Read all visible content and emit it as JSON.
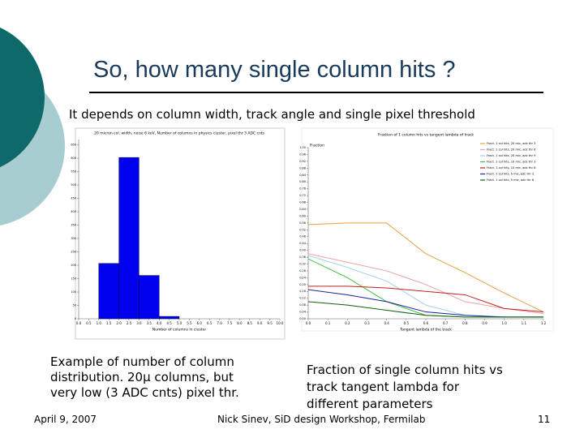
{
  "slide": {
    "title": "So, how many single column hits ?",
    "subtitle": "It depends on column width, track angle and single pixel threshold",
    "left_caption": [
      "Example of number of column",
      "distribution. 20μ columns, but",
      "very low (3 ADC cnts) pixel thr."
    ],
    "right_caption": [
      "Fraction of single column hits vs",
      "track tangent lambda for",
      "different parameters"
    ],
    "footer": {
      "date": "April 9, 2007",
      "author": "Nick Sinev,  SiD design Workshop, Fermilab",
      "page": "11"
    }
  },
  "chart_data": [
    {
      "type": "histogram",
      "title": "20 micron col. width, noise 6 keV, Number of columns in physics cluster, pixel thr 3 ADC cnts",
      "x_label": "Number of columns in cluster",
      "bins": [
        1,
        2,
        3,
        4,
        5
      ],
      "values": [
        207,
        603,
        162,
        9
      ],
      "color": "#0000ee",
      "xlim": [
        0,
        10
      ],
      "xticks": [
        {
          "value": 0,
          "label": "0.0"
        },
        0.5,
        {
          "value": 1,
          "label": "1.0"
        },
        1.5,
        {
          "value": 2,
          "label": "2.0"
        },
        2.5,
        {
          "value": 3,
          "label": "3.0"
        },
        3.5,
        {
          "value": 4,
          "label": "4.0"
        },
        4.5,
        {
          "value": 5,
          "label": "5.0"
        },
        5.5,
        {
          "value": 6,
          "label": "6.0"
        },
        6.5,
        {
          "value": 7,
          "label": "7.0"
        },
        7.5,
        {
          "value": 8,
          "label": "8.0"
        },
        8.5,
        {
          "value": 9,
          "label": "9.0"
        },
        9.5,
        {
          "value": 10,
          "label": "10.0"
        }
      ],
      "ylim": [
        0,
        670
      ],
      "yticks": [
        0,
        50,
        100,
        150,
        200,
        250,
        300,
        350,
        400,
        450,
        500,
        550,
        600,
        650
      ]
    },
    {
      "type": "line",
      "title": "Fraction of 1 column hits vs tangent lambda of track",
      "x_label": "Tangent lambda of the track",
      "y_label": "Fraction",
      "x": [
        0,
        0.2,
        0.4,
        0.6,
        0.8,
        1.0,
        1.2
      ],
      "series": [
        {
          "name": "Fract. 1 col hits, 20 mic, adc thr 3",
          "color": "#e8a040",
          "values": [
            0.55,
            0.56,
            0.56,
            0.38,
            0.27,
            0.15,
            0.04
          ]
        },
        {
          "name": "Fract. 1 col hits, 20 mic, adc thr 6",
          "color": "#f0a0a0",
          "values": [
            0.38,
            0.33,
            0.28,
            0.2,
            0.1,
            0.06,
            0.03
          ]
        },
        {
          "name": "Fract. 1 col hits, 20 mic, adc thr 9",
          "color": "#a0d0e8",
          "values": [
            0.37,
            0.3,
            0.22,
            0.08,
            0.02,
            0.01,
            0.01
          ]
        },
        {
          "name": "Fract. 1 col hits, 10 mic, adc thr 3",
          "color": "#40c040",
          "values": [
            0.35,
            0.24,
            0.1,
            0.02,
            0.01,
            0.01,
            0.01
          ]
        },
        {
          "name": "Fract. 1 col hits, 10 mic, adc thr 6",
          "color": "#c02020",
          "values": [
            0.19,
            0.19,
            0.18,
            0.16,
            0.14,
            0.06,
            0.04
          ]
        },
        {
          "name": "Fract. 1 col hits, 5 mic, adc thr 3",
          "color": "#2020a0",
          "values": [
            0.17,
            0.14,
            0.1,
            0.04,
            0.02,
            0.01,
            0.01
          ]
        },
        {
          "name": "Fract. 1 col hits, 5 mic, adc thr 6",
          "color": "#106010",
          "values": [
            0.1,
            0.08,
            0.05,
            0.02,
            0.01,
            0.01,
            0.01
          ]
        }
      ],
      "xlim": [
        0,
        1.2
      ],
      "xticks": [
        {
          "value": 0,
          "label": "0.0"
        },
        0.1,
        0.2,
        0.3,
        0.4,
        0.5,
        0.6,
        0.7,
        0.8,
        0.9,
        {
          "value": 1,
          "label": "1.0"
        },
        1.1,
        1.2
      ],
      "ylim": [
        0,
        1
      ],
      "yticks": [
        {
          "value": 0,
          "label": "0.00"
        },
        0.04,
        {
          "value": 0.08,
          "label": "0.08"
        },
        0.12,
        0.16,
        {
          "value": 0.2,
          "label": "0.20"
        },
        0.24,
        0.28,
        0.32,
        0.36,
        {
          "value": 0.4,
          "label": "0.40"
        },
        0.44,
        0.48,
        0.52,
        0.56,
        {
          "value": 0.6,
          "label": "0.60"
        },
        0.64,
        0.68,
        0.72,
        0.76,
        {
          "value": 0.8,
          "label": "0.80"
        },
        0.84,
        0.88,
        0.92,
        0.96,
        {
          "value": 1,
          "label": "1.00"
        }
      ],
      "legend": "upper right"
    }
  ]
}
